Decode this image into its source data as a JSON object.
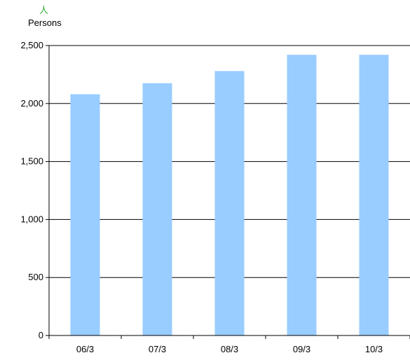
{
  "chart_data": {
    "type": "bar",
    "categories": [
      "06/3",
      "07/3",
      "08/3",
      "09/3",
      "10/3"
    ],
    "values": [
      2080,
      2175,
      2280,
      2420,
      2420
    ],
    "unit_symbol": "人",
    "ylabel": "Persons",
    "ylim": [
      0,
      2500
    ],
    "yticks": [
      0,
      500,
      1000,
      1500,
      2000,
      2500
    ],
    "ytick_labels": [
      "0",
      "500",
      "1,000",
      "1,500",
      "2,000",
      "2,500"
    ],
    "grid": true,
    "bar_color": "#99ccff"
  }
}
